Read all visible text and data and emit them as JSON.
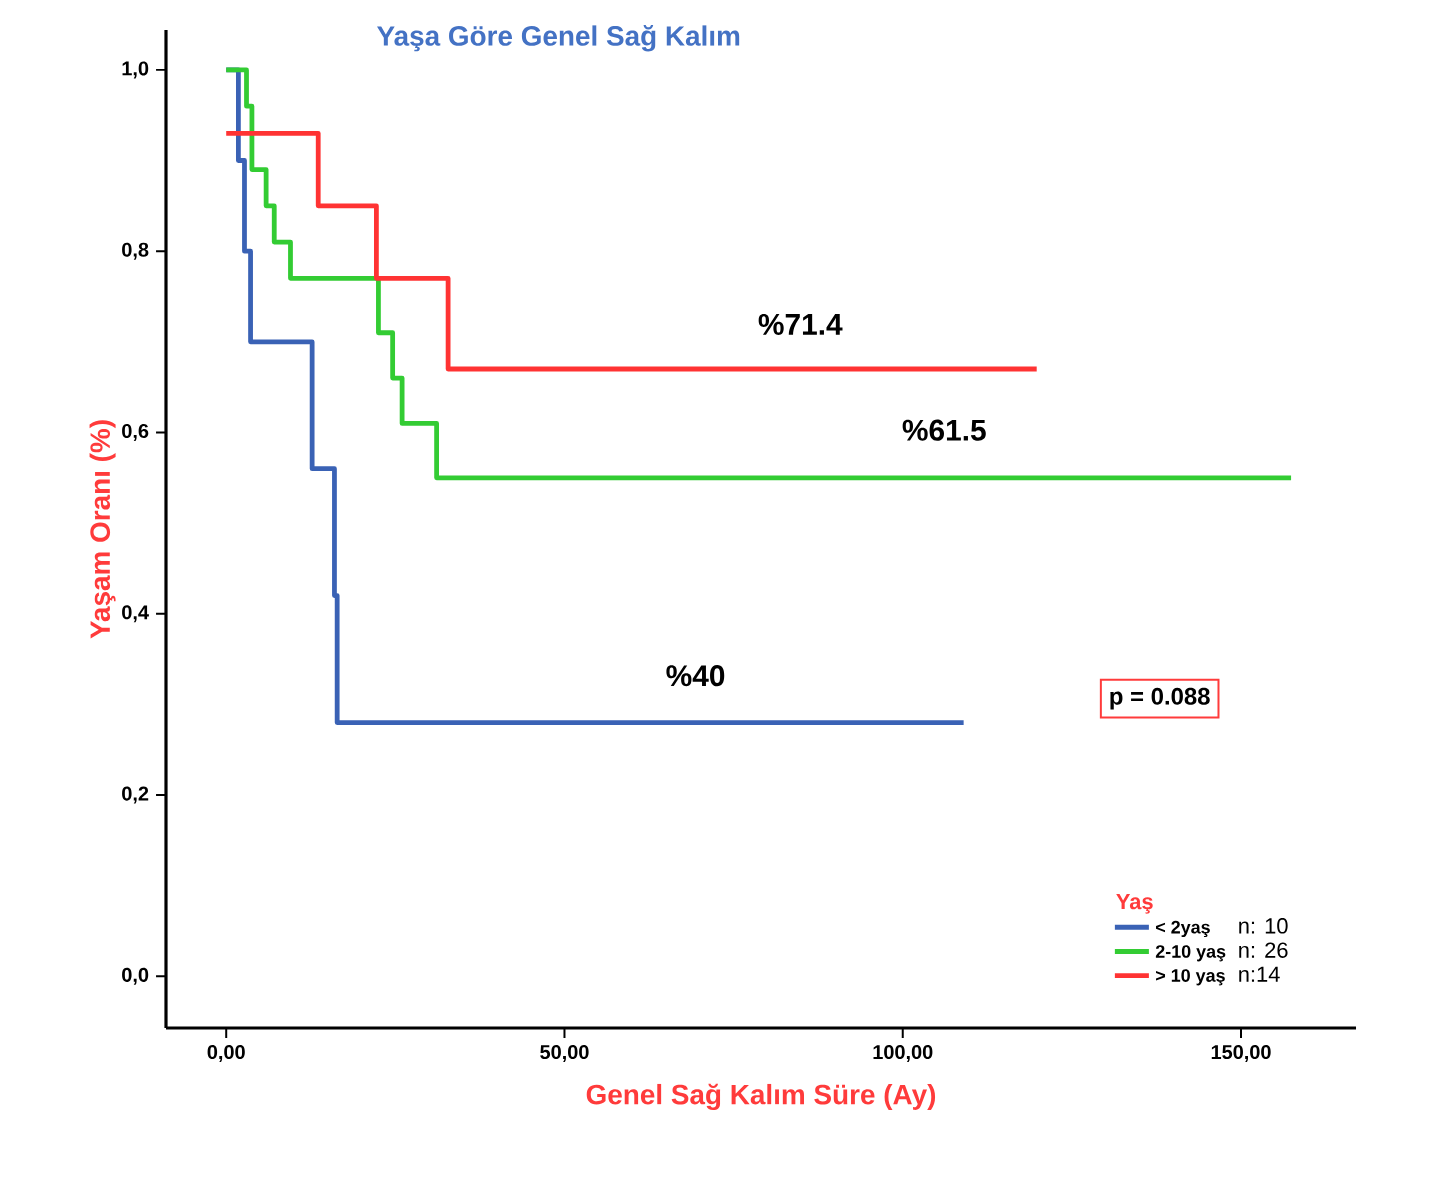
{
  "chart_data": {
    "type": "step",
    "title": "Yaşa Göre Genel Sağ Kalım",
    "xlabel": "Genel Sağ Kalım Süre (Ay)",
    "ylabel": "Yaşam Oranı (%)",
    "legend_title": "Yaş",
    "legend": "bottom right",
    "grid": false,
    "marker": "none",
    "line_style": "solid",
    "xlim": [
      -8.9,
      167
    ],
    "ylim": [
      -0.057,
      1.044
    ],
    "xticks": [
      {
        "value": 0,
        "label": "0,00"
      },
      {
        "value": 50,
        "label": "50,00"
      },
      {
        "value": 100,
        "label": "100,00"
      },
      {
        "value": 150,
        "label": "150,00"
      }
    ],
    "yticks": [
      {
        "value": 0,
        "label": "0,0"
      },
      {
        "value": 0.2,
        "label": "0,2"
      },
      {
        "value": 0.4,
        "label": "0,4"
      },
      {
        "value": 0.6,
        "label": "0,6"
      },
      {
        "value": 0.8,
        "label": "0,8"
      },
      {
        "value": 1.0,
        "label": "1,0"
      }
    ],
    "series": [
      {
        "name": "< 2yaş",
        "color": "#3a62b5",
        "x": [
          0,
          1.8,
          2.7,
          3.6,
          12.7,
          16.0,
          16.4,
          109
        ],
        "values": [
          1.0,
          0.9,
          0.8,
          0.7,
          0.56,
          0.42,
          0.28,
          0.28
        ]
      },
      {
        "name": "2-10 yaş",
        "color": "#33cc33",
        "x": [
          0,
          3.0,
          3.8,
          5.9,
          7.1,
          9.5,
          22.5,
          24.6,
          26.0,
          31.1,
          157.4
        ],
        "values": [
          1.0,
          0.96,
          0.89,
          0.85,
          0.81,
          0.77,
          0.71,
          0.66,
          0.61,
          0.55,
          0.55
        ]
      },
      {
        "name": "> 10 yaş",
        "color": "#ff3333",
        "x": [
          0,
          13.6,
          22.2,
          32.8,
          119.8
        ],
        "values": [
          0.93,
          0.85,
          0.77,
          0.67,
          0.67
        ]
      }
    ],
    "annotations": [
      "%71.4",
      "%61.5",
      "%40",
      "p = 0.088",
      "n: 10",
      "n: 26",
      "n:14"
    ]
  }
}
